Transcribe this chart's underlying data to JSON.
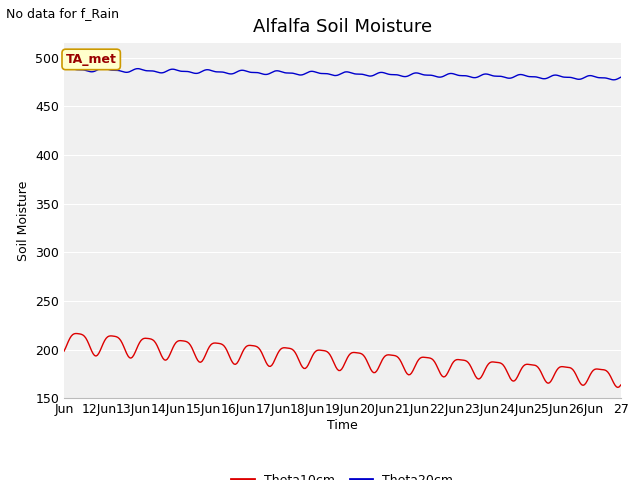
{
  "title": "Alfalfa Soil Moisture",
  "ylabel": "Soil Moisture",
  "xlabel": "Time",
  "top_left_note": "No data for f_Rain",
  "legend_box_label": "TA_met",
  "ylim": [
    150,
    515
  ],
  "yticks": [
    150,
    200,
    250,
    300,
    350,
    400,
    450,
    500
  ],
  "x_tick_labels": [
    "Jun",
    "12Jun",
    "13Jun",
    "14Jun",
    "15Jun",
    "16Jun",
    "17Jun",
    "18Jun",
    "19Jun",
    "20Jun",
    "21Jun",
    "22Jun",
    "23Jun",
    "24Jun",
    "25Jun",
    "26Jun",
    "27"
  ],
  "theta10_color": "#dd0000",
  "theta20_color": "#0000cc",
  "bg_color": "#e8e8e8",
  "plot_bg": "#f0f0f0",
  "legend_box_bg": "#ffffcc",
  "legend_box_border": "#cc9900",
  "title_fontsize": 13,
  "label_fontsize": 9,
  "tick_fontsize": 9,
  "note_fontsize": 9
}
